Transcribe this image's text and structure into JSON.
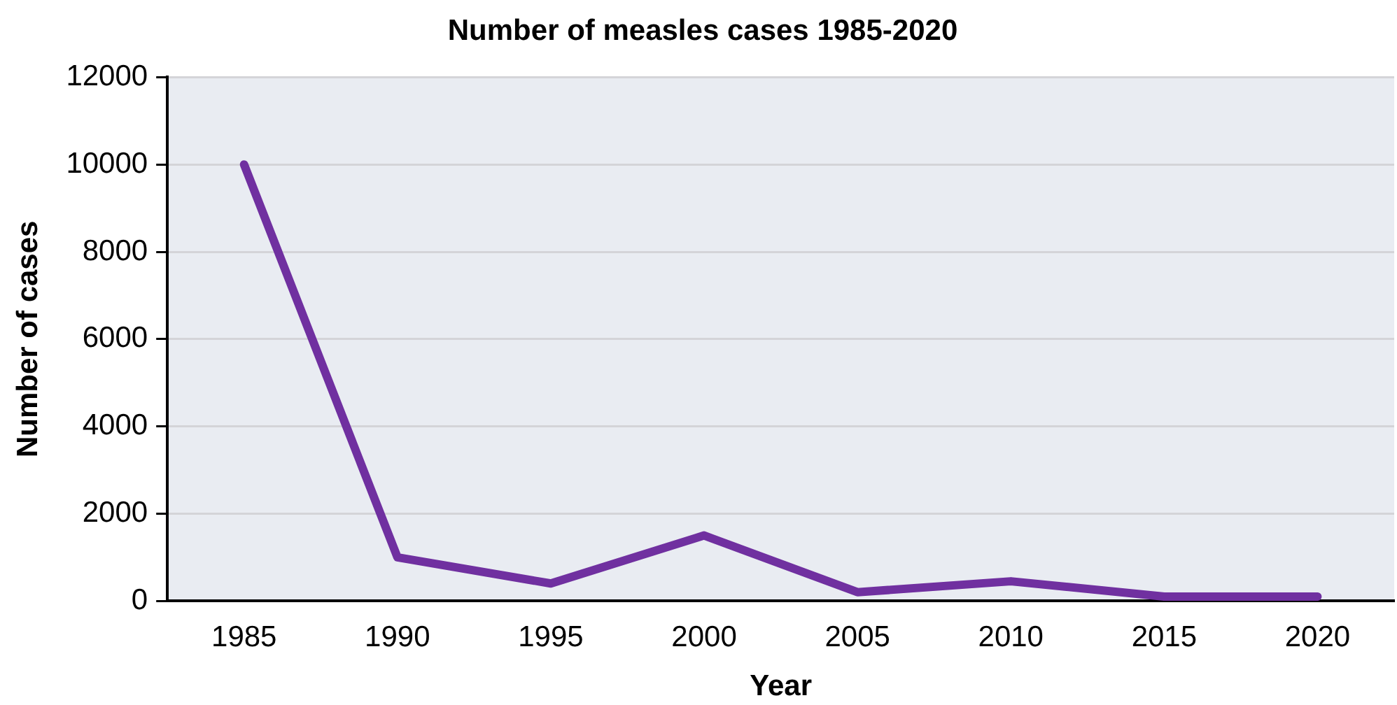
{
  "chart_data": {
    "type": "line",
    "title": "Number of measles cases 1985-2020",
    "xlabel": "Year",
    "ylabel": "Number of cases",
    "categories": [
      "1985",
      "1990",
      "1995",
      "2000",
      "2005",
      "2010",
      "2015",
      "2020"
    ],
    "series": [
      {
        "color": "#7030a0",
        "values": [
          10000,
          1000,
          400,
          1500,
          200,
          450,
          100,
          100
        ]
      }
    ],
    "ylim": [
      0,
      12000
    ],
    "yticks": [
      0,
      2000,
      4000,
      6000,
      8000,
      10000,
      12000
    ],
    "grid": "y",
    "legend": false,
    "marker": "none",
    "line_style": "solid"
  }
}
